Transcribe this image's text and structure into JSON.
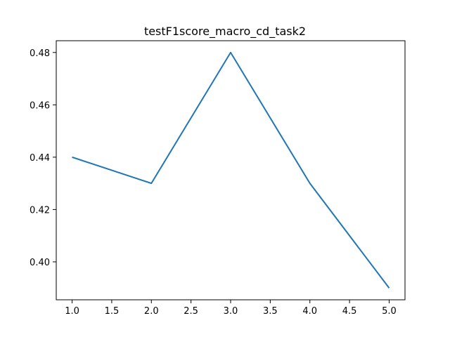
{
  "chart_data": {
    "type": "line",
    "title": "testF1score_macro_cd_task2",
    "xlabel": "",
    "ylabel": "",
    "x": [
      1.0,
      2.0,
      3.0,
      4.0,
      5.0
    ],
    "series": [
      {
        "values": [
          0.44,
          0.43,
          0.48,
          0.43,
          0.39
        ],
        "color": "#1f77b4"
      }
    ],
    "xlim": [
      0.8,
      5.2
    ],
    "ylim": [
      0.3855,
      0.4845
    ],
    "xticks": [
      1.0,
      1.5,
      2.0,
      2.5,
      3.0,
      3.5,
      4.0,
      4.5,
      5.0
    ],
    "xtick_labels": [
      "1.0",
      "1.5",
      "2.0",
      "2.5",
      "3.0",
      "3.5",
      "4.0",
      "4.5",
      "5.0"
    ],
    "yticks": [
      0.4,
      0.42,
      0.44,
      0.46,
      0.48
    ],
    "ytick_labels": [
      "0.40",
      "0.42",
      "0.44",
      "0.46",
      "0.48"
    ],
    "grid": false,
    "legend": "none"
  }
}
